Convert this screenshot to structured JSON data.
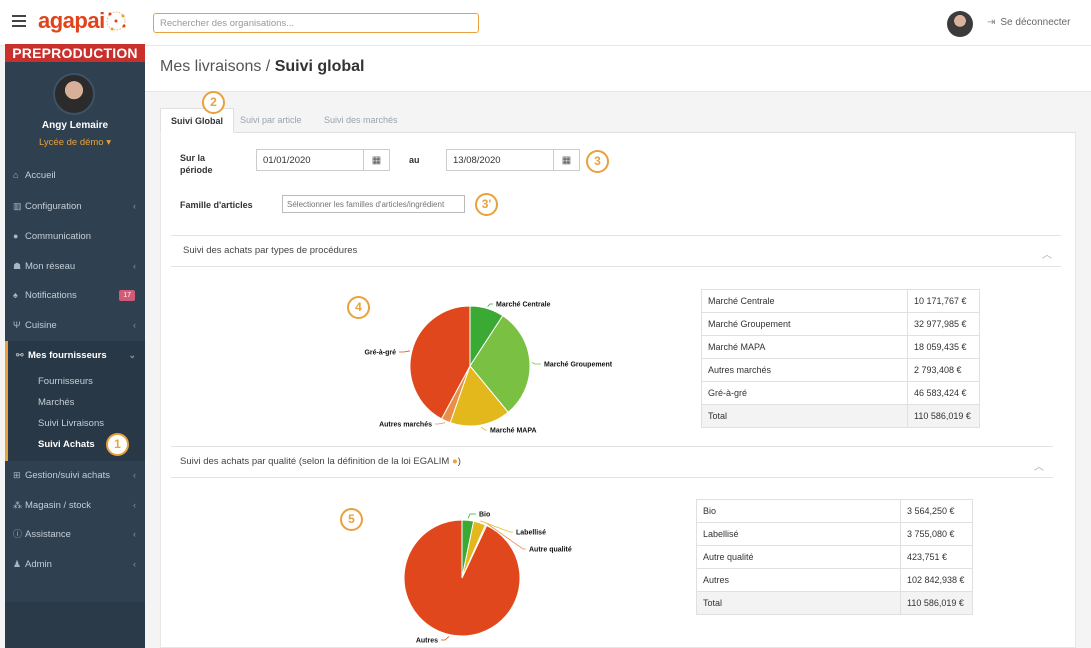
{
  "app": {
    "logo": "agapai",
    "environment_banner": "PREPRODUCTION",
    "search_placeholder": "Rechercher des organisations...",
    "logout_label": "Se déconnecter"
  },
  "user": {
    "name": "Angy Lemaire",
    "organisation": "Lycée de démo ▾"
  },
  "sidebar": {
    "items": [
      {
        "label": "Accueil",
        "icon": "home-icon"
      },
      {
        "label": "Configuration",
        "icon": "bank-icon"
      },
      {
        "label": "Communication",
        "icon": "chat-icon"
      },
      {
        "label": "Mon réseau",
        "icon": "group-icon"
      },
      {
        "label": "Notifications",
        "icon": "bell-icon",
        "badge": "17"
      },
      {
        "label": "Cuisine",
        "icon": "cutlery-icon"
      },
      {
        "label": "Mes fournisseurs",
        "icon": "handshake-icon"
      },
      {
        "label": "Gestion/suivi achats",
        "icon": "cart-icon"
      },
      {
        "label": "Magasin / stock",
        "icon": "cubes-icon"
      },
      {
        "label": "Assistance",
        "icon": "info-icon"
      },
      {
        "label": "Admin",
        "icon": "user-plus-icon"
      }
    ],
    "subitems": [
      "Fournisseurs",
      "Marchés",
      "Suivi Livraisons",
      "Suivi Achats"
    ]
  },
  "markers": {
    "m1": "1",
    "m2": "2",
    "m3": "3",
    "m3b": "3'",
    "m4": "4",
    "m5": "5"
  },
  "page": {
    "title_prefix": "Mes livraisons / ",
    "title_bold": "Suivi global"
  },
  "tabs": [
    "Suivi Global",
    "Suivi par article",
    "Suivi des marchés"
  ],
  "filters": {
    "period_label": "Sur la période",
    "from_value": "01/01/2020",
    "to_label": "au",
    "to_value": "13/08/2020",
    "famille_label": "Famille d'articles",
    "famille_placeholder": "Sélectionner les familles d'articles/ingrédient"
  },
  "sections": {
    "procedures_title": "Suivi des achats par types de procédures",
    "qualite_title": "Suivi des achats par qualité (selon la définition de la loi EGALIM"
  },
  "colors": {
    "accent": "#e8a13c",
    "sidebar": "#2f4050",
    "pie_green_dark": "#3aaa35",
    "pie_green_light": "#7ac143",
    "pie_yellow": "#e3b81c",
    "pie_orange_light": "#e8904a",
    "pie_red": "#e0471c"
  },
  "chart_data": [
    {
      "type": "pie",
      "title": "Suivi des achats par types de procédures",
      "slices": [
        {
          "label": "Marché Centrale",
          "value": 10171.767,
          "color": "#3aaa35"
        },
        {
          "label": "Marché Groupement",
          "value": 32977.985,
          "color": "#7ac143"
        },
        {
          "label": "Marché MAPA",
          "value": 18059.435,
          "color": "#e3b81c"
        },
        {
          "label": "Autres marchés",
          "value": 2793.408,
          "color": "#e8904a"
        },
        {
          "label": "Gré-à-gré",
          "value": 46583.424,
          "color": "#e0471c"
        }
      ],
      "table": [
        {
          "label": "Marché Centrale",
          "value": "10 171,767 €"
        },
        {
          "label": "Marché Groupement",
          "value": "32 977,985 €"
        },
        {
          "label": "Marché MAPA",
          "value": "18 059,435 €"
        },
        {
          "label": "Autres marchés",
          "value": "2 793,408 €"
        },
        {
          "label": "Gré-à-gré",
          "value": "46 583,424 €"
        },
        {
          "label": "Total",
          "value": "110 586,019 €"
        }
      ]
    },
    {
      "type": "pie",
      "title": "Suivi des achats par qualité (selon la définition de la loi EGALIM",
      "slices": [
        {
          "label": "Bio",
          "value": 3564.25,
          "color": "#3aaa35"
        },
        {
          "label": "Labellisé",
          "value": 3755.08,
          "color": "#e3b81c"
        },
        {
          "label": "Autre qualité",
          "value": 423.751,
          "color": "#e8904a"
        },
        {
          "label": "Autres",
          "value": 102842.938,
          "color": "#e0471c"
        }
      ],
      "table": [
        {
          "label": "Bio",
          "value": "3 564,250 €"
        },
        {
          "label": "Labellisé",
          "value": "3 755,080 €"
        },
        {
          "label": "Autre qualité",
          "value": "423,751 €"
        },
        {
          "label": "Autres",
          "value": "102 842,938 €"
        },
        {
          "label": "Total",
          "value": "110 586,019 €"
        }
      ]
    }
  ]
}
